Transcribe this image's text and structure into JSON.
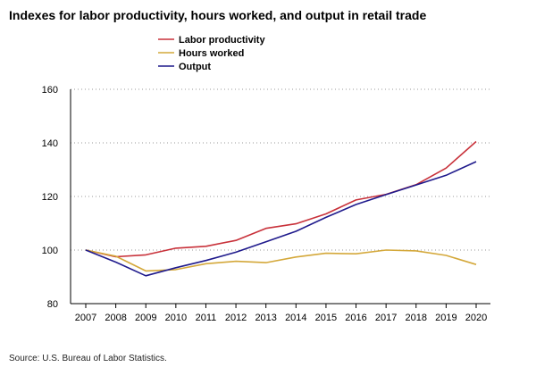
{
  "chart_data": {
    "type": "line",
    "title": "Indexes for labor productivity, hours worked, and output in retail trade",
    "source": "Source: U.S. Bureau of Labor Statistics.",
    "x": [
      "2007",
      "2008",
      "2009",
      "2010",
      "2011",
      "2012",
      "2013",
      "2014",
      "2015",
      "2016",
      "2017",
      "2018",
      "2019",
      "2020"
    ],
    "ylim": [
      80,
      160
    ],
    "yticks": [
      80,
      100,
      120,
      140,
      160
    ],
    "grid": "horizontal dotted",
    "legend_position": "top-center",
    "series": [
      {
        "name": "Labor productivity",
        "color": "#c8313a",
        "values": [
          100,
          97.5,
          98.2,
          100.7,
          101.4,
          103.6,
          108.1,
          109.8,
          113.5,
          118.7,
          120.8,
          124.4,
          130.6,
          140.5
        ]
      },
      {
        "name": "Hours worked",
        "color": "#d4a83a",
        "values": [
          100,
          97.7,
          92.2,
          92.7,
          94.9,
          95.8,
          95.3,
          97.4,
          98.8,
          98.6,
          100.0,
          99.7,
          98.0,
          94.6
        ]
      },
      {
        "name": "Output",
        "color": "#1f1a8c",
        "values": [
          100,
          95.5,
          90.4,
          93.4,
          96.1,
          99.2,
          103.1,
          107.0,
          112.2,
          117.0,
          120.7,
          124.3,
          127.9,
          133.0
        ]
      }
    ]
  }
}
